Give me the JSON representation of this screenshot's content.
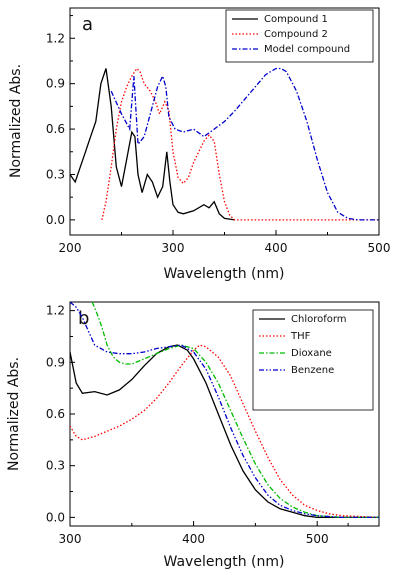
{
  "chart_data": [
    {
      "type": "line",
      "panel_label": "a",
      "xlabel": "Wavelength (nm)",
      "ylabel": "Normalized Abs.",
      "xlim": [
        200,
        500
      ],
      "ylim": [
        -0.1,
        1.4
      ],
      "xticks": [
        200,
        300,
        400,
        500
      ],
      "xtick_labels": [
        "200",
        "300",
        "400",
        "500"
      ],
      "yticks": [
        0.0,
        0.3,
        0.6,
        0.9,
        1.2
      ],
      "ytick_labels": [
        "0.0",
        "0.3",
        "0.6",
        "0.9",
        "1.2"
      ],
      "grid": false,
      "legend_position": "top-right",
      "series": [
        {
          "name": "Compound 1",
          "color": "#000000",
          "dash": "solid",
          "x": [
            200,
            205,
            210,
            215,
            220,
            225,
            230,
            235,
            240,
            245,
            250,
            255,
            260,
            263,
            266,
            270,
            275,
            280,
            285,
            290,
            294,
            297,
            300,
            305,
            310,
            320,
            330,
            335,
            340,
            345,
            350,
            360
          ],
          "y": [
            0.3,
            0.25,
            0.35,
            0.45,
            0.55,
            0.65,
            0.9,
            1.0,
            0.75,
            0.35,
            0.22,
            0.4,
            0.58,
            0.55,
            0.3,
            0.18,
            0.3,
            0.25,
            0.15,
            0.22,
            0.45,
            0.25,
            0.1,
            0.05,
            0.04,
            0.06,
            0.1,
            0.08,
            0.12,
            0.04,
            0.01,
            0.0
          ]
        },
        {
          "name": "Compound 2",
          "color": "#ff0000",
          "dash": "dotted",
          "x": [
            231,
            235,
            240,
            245,
            250,
            255,
            260,
            265,
            268,
            272,
            278,
            283,
            287,
            292,
            296,
            300,
            305,
            310,
            315,
            320,
            325,
            330,
            335,
            340,
            345,
            350,
            355,
            360,
            370,
            380,
            400,
            500
          ],
          "y": [
            0.0,
            0.12,
            0.35,
            0.6,
            0.78,
            0.88,
            0.95,
            1.0,
            0.98,
            0.9,
            0.85,
            0.78,
            0.7,
            0.78,
            0.72,
            0.45,
            0.28,
            0.24,
            0.28,
            0.38,
            0.45,
            0.52,
            0.56,
            0.52,
            0.3,
            0.12,
            0.03,
            0.0,
            0.0,
            0.0,
            0.0,
            0.0
          ]
        },
        {
          "name": "Model compound",
          "color": "#0000cc",
          "dash": "dashdot",
          "x": [
            240,
            250,
            258,
            262,
            266,
            272,
            278,
            285,
            290,
            293,
            296,
            302,
            310,
            320,
            330,
            340,
            350,
            360,
            370,
            380,
            390,
            400,
            405,
            410,
            420,
            430,
            440,
            450,
            460,
            470,
            480,
            500
          ],
          "y": [
            0.85,
            0.7,
            0.6,
            0.95,
            0.5,
            0.55,
            0.7,
            0.88,
            0.95,
            0.88,
            0.68,
            0.6,
            0.58,
            0.6,
            0.55,
            0.6,
            0.65,
            0.72,
            0.8,
            0.88,
            0.96,
            1.0,
            1.0,
            0.98,
            0.85,
            0.65,
            0.4,
            0.18,
            0.05,
            0.01,
            0.0,
            0.0
          ]
        }
      ]
    },
    {
      "type": "line",
      "panel_label": "b",
      "xlabel": "Wavelength (nm)",
      "ylabel": "Normalized Abs.",
      "xlim": [
        300,
        550
      ],
      "ylim": [
        -0.05,
        1.25
      ],
      "xticks": [
        300,
        400,
        500
      ],
      "xtick_labels": [
        "300",
        "400",
        "500"
      ],
      "yticks": [
        0.0,
        0.3,
        0.6,
        0.9,
        1.2
      ],
      "ytick_labels": [
        "0.0",
        "0.3",
        "0.6",
        "0.9",
        "1.2"
      ],
      "grid": false,
      "legend_position": "top-right",
      "series": [
        {
          "name": "Chloroform",
          "color": "#000000",
          "dash": "solid",
          "x": [
            300,
            305,
            310,
            320,
            330,
            340,
            350,
            360,
            370,
            380,
            387,
            395,
            400,
            410,
            420,
            430,
            440,
            450,
            460,
            470,
            480,
            490,
            500,
            510,
            520,
            550
          ],
          "y": [
            0.96,
            0.78,
            0.72,
            0.73,
            0.71,
            0.74,
            0.8,
            0.88,
            0.95,
            0.99,
            1.0,
            0.97,
            0.92,
            0.78,
            0.6,
            0.42,
            0.27,
            0.16,
            0.09,
            0.05,
            0.03,
            0.01,
            0.0,
            0.0,
            0.0,
            0.0
          ]
        },
        {
          "name": "THF",
          "color": "#ff0000",
          "dash": "dotted",
          "x": [
            300,
            305,
            310,
            320,
            330,
            340,
            350,
            360,
            370,
            380,
            390,
            400,
            405,
            410,
            420,
            430,
            440,
            450,
            460,
            470,
            480,
            490,
            500,
            510,
            520,
            550
          ],
          "y": [
            0.53,
            0.47,
            0.45,
            0.47,
            0.5,
            0.53,
            0.57,
            0.62,
            0.69,
            0.78,
            0.88,
            0.97,
            1.0,
            0.99,
            0.93,
            0.82,
            0.66,
            0.5,
            0.35,
            0.22,
            0.13,
            0.07,
            0.04,
            0.02,
            0.01,
            0.0
          ]
        },
        {
          "name": "Dioxane",
          "color": "#00bb00",
          "dash": "dashdot",
          "x": [
            318,
            322,
            326,
            330,
            335,
            340,
            345,
            350,
            360,
            370,
            380,
            390,
            400,
            410,
            420,
            430,
            440,
            450,
            460,
            470,
            480,
            490,
            500,
            520,
            550
          ],
          "y": [
            1.25,
            1.18,
            1.1,
            1.0,
            0.93,
            0.9,
            0.89,
            0.89,
            0.92,
            0.95,
            0.98,
            1.0,
            0.98,
            0.9,
            0.78,
            0.62,
            0.46,
            0.31,
            0.19,
            0.11,
            0.06,
            0.03,
            0.01,
            0.0,
            0.0
          ]
        },
        {
          "name": "Benzene",
          "color": "#0000cc",
          "dash": "dashdotdot",
          "x": [
            300,
            305,
            310,
            315,
            320,
            330,
            340,
            350,
            360,
            370,
            380,
            390,
            400,
            410,
            420,
            430,
            440,
            450,
            460,
            470,
            480,
            490,
            500,
            520,
            550
          ],
          "y": [
            1.25,
            1.22,
            1.16,
            1.08,
            1.0,
            0.96,
            0.95,
            0.95,
            0.96,
            0.98,
            0.99,
            1.0,
            0.96,
            0.86,
            0.7,
            0.52,
            0.36,
            0.23,
            0.13,
            0.07,
            0.04,
            0.02,
            0.01,
            0.0,
            0.0
          ]
        }
      ]
    }
  ]
}
